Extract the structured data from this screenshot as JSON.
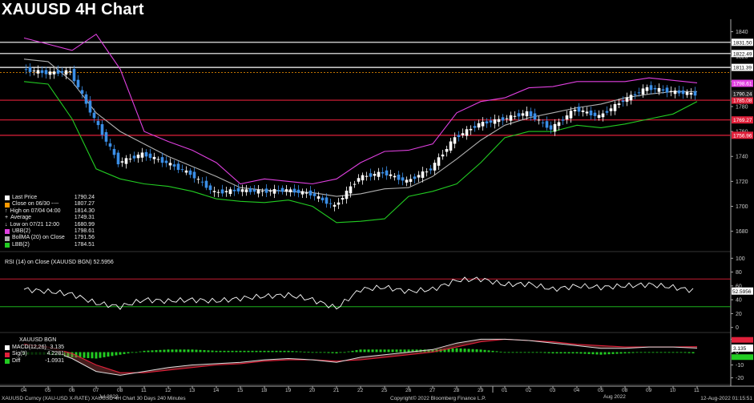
{
  "title": "XAUUSD 4H Chart",
  "colors": {
    "bg": "#000000",
    "candle_up": "#ffffff",
    "candle_down": "#3a8ee6",
    "ubb": "#e040e0",
    "lbb": "#22cc22",
    "ma": "#b0b0b0",
    "res_line": "#ffffff",
    "sup_line": "#e0203a",
    "macd": "#ffffff",
    "sig": "#e0203a",
    "diff_pos": "#22cc22",
    "diff_neg": "#22cc22"
  },
  "main_panel": {
    "ylim": [
      1665,
      1850
    ],
    "yticks": [
      1680,
      1700,
      1720,
      1740,
      1760,
      1780,
      1800,
      1820,
      1840
    ],
    "h_lines": [
      {
        "value": 1831.5,
        "label": "1831.50",
        "kind": "res"
      },
      {
        "value": 1822.49,
        "label": "1822.49",
        "kind": "res"
      },
      {
        "value": 1811.39,
        "label": "1811.39",
        "kind": "res"
      },
      {
        "value": 1785.08,
        "label": "1785.08",
        "kind": "sup"
      },
      {
        "value": 1769.27,
        "label": "1769.27",
        "kind": "sup"
      },
      {
        "value": 1756.96,
        "label": "1756.96",
        "kind": "sup"
      }
    ],
    "last_price_label": "1790.24",
    "ubb_label": "1798.61"
  },
  "legend": [
    {
      "label": "Last Price",
      "value": "1790.24",
      "swatch": "#ffffff",
      "kind": "box"
    },
    {
      "label": "Close on 06/30 ----",
      "value": "1807.27",
      "swatch": "#ff9900",
      "kind": "box"
    },
    {
      "label": "High on 07/04 04:00",
      "value": "1814.30",
      "swatch": "",
      "kind": "arrow-up"
    },
    {
      "label": "Average",
      "value": "1749.31",
      "swatch": "",
      "kind": "plus"
    },
    {
      "label": "Low on 07/21 12:00",
      "value": "1680.99",
      "swatch": "",
      "kind": "arrow-down"
    },
    {
      "label": "UBB(2)",
      "value": "1798.61",
      "swatch": "#e040e0",
      "kind": "box"
    },
    {
      "label": "BollMA (20)  on Close",
      "value": "1791.56",
      "swatch": "#b0b0b0",
      "kind": "box"
    },
    {
      "label": "LBB(2)",
      "value": "1784.51",
      "swatch": "#22cc22",
      "kind": "box"
    }
  ],
  "rsi_panel": {
    "label": "RSI (14)  on Close (XAUUSD BGN) 52.5956",
    "ylim": [
      -5,
      105
    ],
    "yticks": [
      0,
      20,
      40,
      60,
      80,
      100
    ],
    "upper": 70,
    "lower": 30,
    "value_label": "52.5956"
  },
  "macd_panel": {
    "title": "XAUUSD BGN",
    "ylim": [
      -24,
      14
    ],
    "yticks": [
      -20,
      -10,
      0,
      10
    ],
    "value_label": "3.135",
    "legend": [
      {
        "label": "MACD(12,26)",
        "value": "3.135",
        "swatch": "#ffffff"
      },
      {
        "label": "Sig(9)",
        "value": "4.2281",
        "swatch": "#e0203a"
      },
      {
        "label": "Diff",
        "value": "-1.0931",
        "swatch": "#22cc22"
      }
    ]
  },
  "x_axis": {
    "ticks": [
      "04",
      "05",
      "06",
      "07",
      "08",
      "11",
      "12",
      "13",
      "14",
      "15",
      "18",
      "19",
      "20",
      "21",
      "22",
      "25",
      "26",
      "27",
      "28",
      "29",
      "01",
      "02",
      "03",
      "04",
      "05",
      "08",
      "09",
      "10",
      "11"
    ],
    "month_labels": [
      {
        "label": "Jul 2022",
        "index": 3.5
      },
      {
        "label": "Aug 2022",
        "index": 24.5
      }
    ]
  },
  "footer": {
    "left": "XAUUSD Curncy (XAU-USD X-RATE) XAUUSD 4H Chart 30 Days 240 Minutes",
    "center": "Copyright© 2022 Bloomberg Finance L.P.",
    "right": "12-Aug-2022 01:15:51"
  },
  "chart_data": {
    "type": "candlestick",
    "x_categories": [
      "04",
      "05",
      "06",
      "07",
      "08",
      "11",
      "12",
      "13",
      "14",
      "15",
      "18",
      "19",
      "20",
      "21",
      "22",
      "25",
      "26",
      "27",
      "28",
      "29",
      "01",
      "02",
      "03",
      "04",
      "05",
      "08",
      "09",
      "10",
      "11"
    ],
    "close_points": [
      1810,
      1807,
      1808,
      1770,
      1735,
      1742,
      1735,
      1726,
      1711,
      1713,
      1712,
      1713,
      1710,
      1700,
      1723,
      1727,
      1720,
      1730,
      1755,
      1766,
      1770,
      1775,
      1762,
      1778,
      1772,
      1785,
      1795,
      1792,
      1790
    ],
    "ubb_points": [
      1835,
      1830,
      1825,
      1838,
      1810,
      1760,
      1752,
      1745,
      1735,
      1718,
      1722,
      1720,
      1718,
      1722,
      1735,
      1744,
      1745,
      1750,
      1775,
      1784,
      1787,
      1795,
      1796,
      1800,
      1800,
      1800,
      1803,
      1801,
      1799
    ],
    "ma_points": [
      1818,
      1816,
      1800,
      1775,
      1760,
      1750,
      1740,
      1732,
      1724,
      1715,
      1713,
      1712,
      1711,
      1708,
      1710,
      1714,
      1715,
      1724,
      1738,
      1753,
      1765,
      1771,
      1775,
      1779,
      1782,
      1787,
      1790,
      1792,
      1792
    ],
    "lbb_points": [
      1800,
      1798,
      1770,
      1730,
      1722,
      1718,
      1716,
      1712,
      1706,
      1704,
      1703,
      1705,
      1700,
      1687,
      1688,
      1690,
      1708,
      1712,
      1718,
      1735,
      1755,
      1760,
      1760,
      1765,
      1763,
      1766,
      1770,
      1774,
      1784
    ],
    "rsi_points": [
      55,
      52,
      48,
      35,
      30,
      40,
      38,
      40,
      38,
      42,
      45,
      47,
      40,
      28,
      55,
      58,
      52,
      55,
      68,
      70,
      62,
      63,
      55,
      60,
      58,
      60,
      62,
      58,
      52.6
    ],
    "macd_points": [
      4,
      2,
      -5,
      -15,
      -18,
      -15,
      -12,
      -10,
      -9,
      -8,
      -6,
      -5,
      -6,
      -8,
      -4,
      -2,
      0,
      2,
      7,
      10,
      10,
      9,
      7,
      5,
      3,
      3,
      4,
      4,
      3.1
    ],
    "sig_points": [
      6,
      4,
      -1,
      -10,
      -16,
      -16,
      -14,
      -12,
      -10,
      -9,
      -7,
      -6,
      -6,
      -7,
      -6,
      -4,
      -2,
      0,
      4,
      8,
      10,
      9,
      8,
      6,
      5,
      4,
      4,
      4,
      4.2
    ]
  }
}
